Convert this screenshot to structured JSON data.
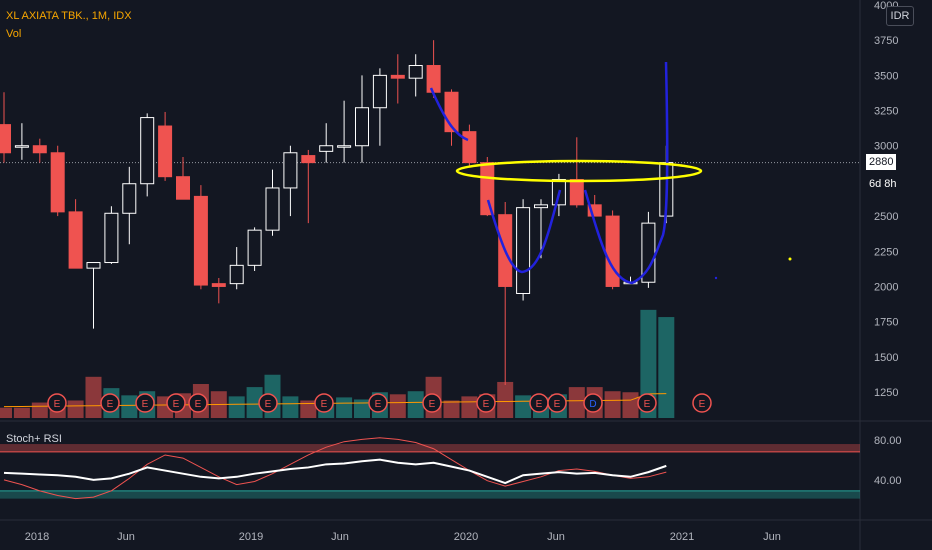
{
  "header": {
    "symbol_line": "XL AXIATA TBK., 1M, IDX",
    "volume_label": "Vol",
    "currency_button": "IDR"
  },
  "stoch_panel": {
    "label": "Stoch+ RSI",
    "ticks": [
      "80.00",
      "40.00"
    ]
  },
  "price_scale_ticks": [
    "4000",
    "3750",
    "3500",
    "3250",
    "3000",
    "2750",
    "2500",
    "2250",
    "2000",
    "1750",
    "1500",
    "1250"
  ],
  "current_price": {
    "value": "2880",
    "countdown": "6d 8h"
  },
  "time_axis_labels": [
    "2018",
    "Jun",
    "2019",
    "Jun",
    "2020",
    "Jun",
    "2021",
    "Jun"
  ],
  "event_markers": [
    "E",
    "E",
    "E",
    "E",
    "E",
    "E",
    "E",
    "E",
    "E",
    "E",
    "E",
    "E",
    "D",
    "E",
    "E",
    "E"
  ],
  "colors": {
    "up": "#ffffff",
    "down": "#ef5350",
    "vol_up": "#26a69a",
    "vol_down": "#ef5350",
    "drawing_blue": "#2222dd",
    "drawing_yellow": "#ffff00",
    "stoch_k": "#ffffff",
    "stoch_d": "#ef5350",
    "vol_ma": "#ff9800"
  },
  "chart_data": {
    "type": "candlestick",
    "interval": "1M",
    "ylim": [
      1100,
      4000
    ],
    "candles": [
      {
        "date": "2017-11",
        "open": 3150,
        "high": 3380,
        "low": 2880,
        "close": 2950
      },
      {
        "date": "2017-12",
        "open": 3000,
        "high": 3160,
        "low": 2900,
        "close": 3000
      },
      {
        "date": "2018-01",
        "open": 3000,
        "high": 3050,
        "low": 2880,
        "close": 2950
      },
      {
        "date": "2018-02",
        "open": 2950,
        "high": 3000,
        "low": 2500,
        "close": 2530
      },
      {
        "date": "2018-03",
        "open": 2530,
        "high": 2620,
        "low": 2130,
        "close": 2130
      },
      {
        "date": "2018-04",
        "open": 2130,
        "high": 2150,
        "low": 1700,
        "close": 2170
      },
      {
        "date": "2018-05",
        "open": 2170,
        "high": 2570,
        "low": 2160,
        "close": 2520
      },
      {
        "date": "2018-06",
        "open": 2520,
        "high": 2850,
        "low": 2300,
        "close": 2730
      },
      {
        "date": "2018-07",
        "open": 2730,
        "high": 3230,
        "low": 2640,
        "close": 3200
      },
      {
        "date": "2018-08",
        "open": 3140,
        "high": 3240,
        "low": 2750,
        "close": 2780
      },
      {
        "date": "2018-09",
        "open": 2780,
        "high": 2920,
        "low": 2620,
        "close": 2620
      },
      {
        "date": "2018-10",
        "open": 2640,
        "high": 2720,
        "low": 1980,
        "close": 2010
      },
      {
        "date": "2018-11",
        "open": 2020,
        "high": 2060,
        "low": 1880,
        "close": 2000
      },
      {
        "date": "2018-12",
        "open": 2020,
        "high": 2280,
        "low": 1980,
        "close": 2150
      },
      {
        "date": "2019-01",
        "open": 2150,
        "high": 2420,
        "low": 2110,
        "close": 2400
      },
      {
        "date": "2019-02",
        "open": 2400,
        "high": 2830,
        "low": 2360,
        "close": 2700
      },
      {
        "date": "2019-03",
        "open": 2700,
        "high": 3000,
        "low": 2500,
        "close": 2950
      },
      {
        "date": "2019-04",
        "open": 2930,
        "high": 2970,
        "low": 2450,
        "close": 2880
      },
      {
        "date": "2019-05",
        "open": 2960,
        "high": 3160,
        "low": 2880,
        "close": 3000
      },
      {
        "date": "2019-06",
        "open": 3000,
        "high": 3320,
        "low": 2880,
        "close": 3000
      },
      {
        "date": "2019-07",
        "open": 3000,
        "high": 3500,
        "low": 2880,
        "close": 3270
      },
      {
        "date": "2019-08",
        "open": 3270,
        "high": 3550,
        "low": 3000,
        "close": 3500
      },
      {
        "date": "2019-09",
        "open": 3500,
        "high": 3650,
        "low": 3300,
        "close": 3480
      },
      {
        "date": "2019-10",
        "open": 3480,
        "high": 3650,
        "low": 3350,
        "close": 3570
      },
      {
        "date": "2019-11",
        "open": 3570,
        "high": 3750,
        "low": 3340,
        "close": 3380
      },
      {
        "date": "2019-12",
        "open": 3380,
        "high": 3400,
        "low": 3000,
        "close": 3100
      },
      {
        "date": "2020-01",
        "open": 3100,
        "high": 3150,
        "low": 2850,
        "close": 2880
      },
      {
        "date": "2020-02",
        "open": 2880,
        "high": 2920,
        "low": 2500,
        "close": 2510
      },
      {
        "date": "2020-03",
        "open": 2510,
        "high": 2600,
        "low": 1300,
        "close": 2000
      },
      {
        "date": "2020-04",
        "open": 1950,
        "high": 2620,
        "low": 1900,
        "close": 2560
      },
      {
        "date": "2020-05",
        "open": 2560,
        "high": 2620,
        "low": 2200,
        "close": 2580
      },
      {
        "date": "2020-06",
        "open": 2580,
        "high": 2800,
        "low": 2500,
        "close": 2760
      },
      {
        "date": "2020-07",
        "open": 2760,
        "high": 3060,
        "low": 2560,
        "close": 2580
      },
      {
        "date": "2020-08",
        "open": 2580,
        "high": 2650,
        "low": 2500,
        "close": 2500
      },
      {
        "date": "2020-09",
        "open": 2500,
        "high": 2540,
        "low": 1980,
        "close": 2000
      },
      {
        "date": "2020-10",
        "open": 2030,
        "high": 2070,
        "low": 2020,
        "close": 2030
      },
      {
        "date": "2020-11",
        "open": 2030,
        "high": 2530,
        "low": 1990,
        "close": 2450
      },
      {
        "date": "2020-12",
        "open": 2500,
        "high": 3000,
        "low": 2450,
        "close": 2880
      }
    ],
    "volume": [
      {
        "date": "2017-11",
        "value": 1.0,
        "dir": "down"
      },
      {
        "date": "2017-12",
        "value": 1.0,
        "dir": "down"
      },
      {
        "date": "2018-01",
        "value": 1.5,
        "dir": "down"
      },
      {
        "date": "2018-02",
        "value": 1.6,
        "dir": "down"
      },
      {
        "date": "2018-03",
        "value": 1.7,
        "dir": "down"
      },
      {
        "date": "2018-04",
        "value": 4.0,
        "dir": "down"
      },
      {
        "date": "2018-05",
        "value": 2.9,
        "dir": "up"
      },
      {
        "date": "2018-06",
        "value": 2.2,
        "dir": "up"
      },
      {
        "date": "2018-07",
        "value": 2.6,
        "dir": "up"
      },
      {
        "date": "2018-08",
        "value": 2.1,
        "dir": "down"
      },
      {
        "date": "2018-09",
        "value": 2.4,
        "dir": "down"
      },
      {
        "date": "2018-10",
        "value": 3.3,
        "dir": "down"
      },
      {
        "date": "2018-11",
        "value": 2.6,
        "dir": "down"
      },
      {
        "date": "2018-12",
        "value": 2.1,
        "dir": "up"
      },
      {
        "date": "2019-01",
        "value": 3.0,
        "dir": "up"
      },
      {
        "date": "2019-02",
        "value": 4.2,
        "dir": "up"
      },
      {
        "date": "2019-03",
        "value": 2.1,
        "dir": "up"
      },
      {
        "date": "2019-04",
        "value": 1.7,
        "dir": "down"
      },
      {
        "date": "2019-05",
        "value": 1.5,
        "dir": "up"
      },
      {
        "date": "2019-06",
        "value": 2.0,
        "dir": "up"
      },
      {
        "date": "2019-07",
        "value": 1.8,
        "dir": "up"
      },
      {
        "date": "2019-08",
        "value": 2.5,
        "dir": "up"
      },
      {
        "date": "2019-09",
        "value": 2.3,
        "dir": "down"
      },
      {
        "date": "2019-10",
        "value": 2.6,
        "dir": "up"
      },
      {
        "date": "2019-11",
        "value": 4.0,
        "dir": "down"
      },
      {
        "date": "2019-12",
        "value": 1.7,
        "dir": "down"
      },
      {
        "date": "2020-01",
        "value": 2.1,
        "dir": "down"
      },
      {
        "date": "2020-02",
        "value": 2.3,
        "dir": "down"
      },
      {
        "date": "2020-03",
        "value": 3.5,
        "dir": "down"
      },
      {
        "date": "2020-04",
        "value": 2.2,
        "dir": "up"
      },
      {
        "date": "2020-05",
        "value": 2.0,
        "dir": "up"
      },
      {
        "date": "2020-06",
        "value": 2.3,
        "dir": "up"
      },
      {
        "date": "2020-07",
        "value": 3.0,
        "dir": "down"
      },
      {
        "date": "2020-08",
        "value": 3.0,
        "dir": "down"
      },
      {
        "date": "2020-09",
        "value": 2.6,
        "dir": "down"
      },
      {
        "date": "2020-10",
        "value": 2.5,
        "dir": "down"
      },
      {
        "date": "2020-11",
        "value": 10.5,
        "dir": "up"
      },
      {
        "date": "2020-12",
        "value": 9.8,
        "dir": "up"
      }
    ],
    "stoch_rsi": {
      "ylim": [
        0,
        100
      ],
      "levels": [
        80,
        20
      ],
      "k": [
        45,
        44,
        43,
        42,
        40,
        36,
        38,
        44,
        52,
        48,
        44,
        40,
        38,
        40,
        44,
        47,
        50,
        52,
        56,
        57,
        60,
        62,
        58,
        56,
        58,
        53,
        48,
        40,
        32,
        42,
        44,
        46,
        44,
        45,
        42,
        40,
        46,
        54
      ],
      "d": [
        36,
        30,
        22,
        16,
        12,
        14,
        22,
        38,
        56,
        68,
        64,
        52,
        40,
        30,
        34,
        44,
        56,
        68,
        78,
        85,
        88,
        90,
        88,
        84,
        76,
        62,
        48,
        35,
        28,
        34,
        40,
        48,
        50,
        47,
        42,
        38,
        40,
        46
      ]
    },
    "drawings": [
      {
        "type": "curve",
        "color": "blue",
        "description": "cup and handle outline"
      },
      {
        "type": "ellipse",
        "color": "yellow",
        "around_price": 2880
      }
    ]
  }
}
